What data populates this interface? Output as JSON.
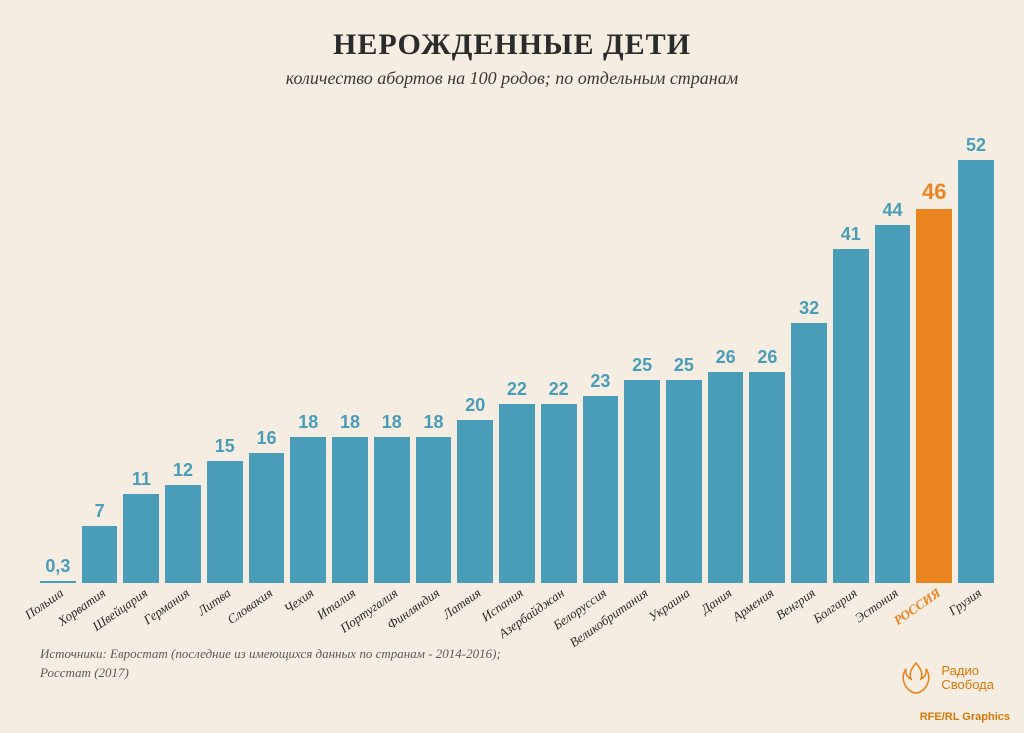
{
  "title": "НЕРОЖДЕННЫЕ ДЕТИ",
  "subtitle": "количество абортов на 100 родов; по отдельным странам",
  "chart": {
    "type": "bar",
    "ymax": 52,
    "default_color": "#4a9db8",
    "highlight_color": "#e9841f",
    "label_color_default": "#4a9db8",
    "label_color_highlight": "#e9841f",
    "value_fontsize": 18,
    "value_fontsize_highlight": 22,
    "xlabel_fontsize": 13,
    "xlabel_color_default": "#2b2b2b",
    "xlabel_color_highlight": "#e9841f",
    "background_color": "#f5ede1",
    "bars": [
      {
        "label": "Польша",
        "value": 0.3,
        "display": "0,3",
        "highlight": false
      },
      {
        "label": "Хорватия",
        "value": 7,
        "display": "7",
        "highlight": false
      },
      {
        "label": "Швейцария",
        "value": 11,
        "display": "11",
        "highlight": false
      },
      {
        "label": "Германия",
        "value": 12,
        "display": "12",
        "highlight": false
      },
      {
        "label": "Литва",
        "value": 15,
        "display": "15",
        "highlight": false
      },
      {
        "label": "Словакия",
        "value": 16,
        "display": "16",
        "highlight": false
      },
      {
        "label": "Чехия",
        "value": 18,
        "display": "18",
        "highlight": false
      },
      {
        "label": "Италия",
        "value": 18,
        "display": "18",
        "highlight": false
      },
      {
        "label": "Португалия",
        "value": 18,
        "display": "18",
        "highlight": false
      },
      {
        "label": "Финляндия",
        "value": 18,
        "display": "18",
        "highlight": false
      },
      {
        "label": "Латвия",
        "value": 20,
        "display": "20",
        "highlight": false
      },
      {
        "label": "Испания",
        "value": 22,
        "display": "22",
        "highlight": false
      },
      {
        "label": "Азербайджан",
        "value": 22,
        "display": "22",
        "highlight": false
      },
      {
        "label": "Белоруссия",
        "value": 23,
        "display": "23",
        "highlight": false
      },
      {
        "label": "Великобритания",
        "value": 25,
        "display": "25",
        "highlight": false
      },
      {
        "label": "Украина",
        "value": 25,
        "display": "25",
        "highlight": false
      },
      {
        "label": "Дания",
        "value": 26,
        "display": "26",
        "highlight": false
      },
      {
        "label": "Армения",
        "value": 26,
        "display": "26",
        "highlight": false
      },
      {
        "label": "Венгрия",
        "value": 32,
        "display": "32",
        "highlight": false
      },
      {
        "label": "Болгария",
        "value": 41,
        "display": "41",
        "highlight": false
      },
      {
        "label": "Эстония",
        "value": 44,
        "display": "44",
        "highlight": false
      },
      {
        "label": "РОССИЯ",
        "value": 46,
        "display": "46",
        "highlight": true
      },
      {
        "label": "Грузия",
        "value": 52,
        "display": "52",
        "highlight": false
      }
    ]
  },
  "source_line1": "Источники: Евростат (последние из имеющихся данных по странам - 2014-2016);",
  "source_line2": "Росстат (2017)",
  "logo_line1": "Радио",
  "logo_line2": "Свобода",
  "credit": "RFE/RL Graphics"
}
